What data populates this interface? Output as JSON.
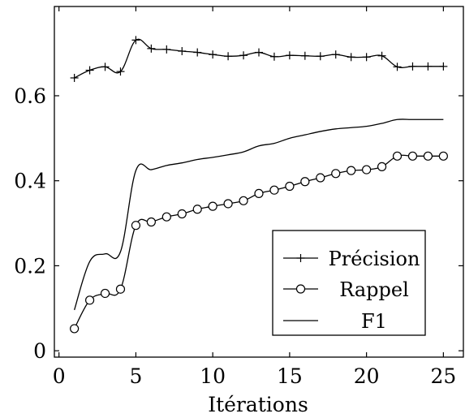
{
  "chart_data": {
    "type": "line",
    "title": "",
    "xlabel": "Itérations",
    "ylabel": "",
    "xlim": [
      -0.3,
      26.3
    ],
    "ylim": [
      -0.015,
      0.81
    ],
    "xticks": [
      0,
      5,
      10,
      15,
      20,
      25
    ],
    "yticks": [
      0,
      0.2,
      0.4,
      0.6
    ],
    "ytick_labels": [
      "0",
      "0.2",
      "0.4",
      "0.6"
    ],
    "grid": false,
    "legend_position": "bottom-right",
    "x": [
      1,
      2,
      3,
      4,
      5,
      6,
      7,
      8,
      9,
      10,
      11,
      12,
      13,
      14,
      15,
      16,
      17,
      18,
      19,
      20,
      21,
      22,
      23,
      24,
      25
    ],
    "series": [
      {
        "name": "Précision",
        "marker": "plus",
        "color": "#000000",
        "values": [
          0.642,
          0.66,
          0.668,
          0.657,
          0.731,
          0.711,
          0.709,
          0.705,
          0.702,
          0.697,
          0.693,
          0.695,
          0.702,
          0.692,
          0.695,
          0.694,
          0.693,
          0.697,
          0.691,
          0.691,
          0.694,
          0.668,
          0.669,
          0.669,
          0.669
        ]
      },
      {
        "name": "Rappel",
        "marker": "circle",
        "color": "#000000",
        "values": [
          0.052,
          0.119,
          0.135,
          0.145,
          0.295,
          0.303,
          0.315,
          0.322,
          0.333,
          0.34,
          0.346,
          0.353,
          0.37,
          0.378,
          0.387,
          0.398,
          0.407,
          0.417,
          0.424,
          0.426,
          0.433,
          0.458,
          0.458,
          0.458,
          0.458
        ]
      },
      {
        "name": "F1",
        "marker": "none",
        "color": "#000000",
        "values": [
          0.096,
          0.21,
          0.228,
          0.233,
          0.424,
          0.426,
          0.436,
          0.442,
          0.45,
          0.455,
          0.461,
          0.468,
          0.482,
          0.488,
          0.5,
          0.508,
          0.516,
          0.522,
          0.525,
          0.528,
          0.535,
          0.544,
          0.544,
          0.544,
          0.544
        ]
      }
    ]
  }
}
